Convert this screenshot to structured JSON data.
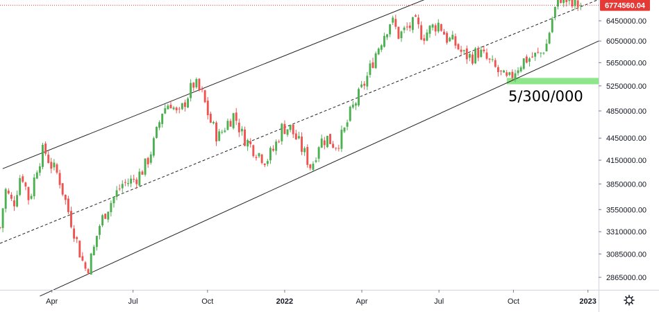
{
  "colors": {
    "up": "#26a69a",
    "up_fill": "#4caf50",
    "down": "#ef5350",
    "channel_line": "#222222",
    "price_line": "#e53935",
    "support_zone": "#8ee68a",
    "axis_border": "#d1d4dc"
  },
  "price_tag": "6774560.04",
  "annotation": "5/300/000",
  "settings_icon": "gear-icon",
  "chart_data": {
    "type": "candlestick",
    "title": "",
    "xlabel": "",
    "ylabel": "",
    "x_ticks": [
      {
        "label": "Apr",
        "t": 0.85,
        "bold": false
      },
      {
        "label": "Jul",
        "t": 3.9,
        "bold": false
      },
      {
        "label": "Oct",
        "t": 6.7,
        "bold": false
      },
      {
        "label": "2022",
        "t": 9.6,
        "bold": true
      },
      {
        "label": "Apr",
        "t": 12.5,
        "bold": false
      },
      {
        "label": "Jul",
        "t": 15.4,
        "bold": false
      },
      {
        "label": "Oct",
        "t": 18.2,
        "bold": false
      },
      {
        "label": "2023",
        "t": 21.0,
        "bold": true
      }
    ],
    "y_ticks": [
      2865000,
      3085000,
      3310000,
      3550000,
      3850000,
      4150000,
      4450000,
      4850000,
      5250000,
      5650000,
      6050000,
      6450000
    ],
    "y_tick_labels": [
      "2865000.00",
      "3085000.00",
      "3310000.00",
      "3550000.00",
      "3850000.00",
      "4150000.00",
      "4450000.00",
      "4850000.00",
      "5250000.00",
      "5650000.00",
      "6050000.00",
      "6450000.00"
    ],
    "xlim": [
      -1.1,
      21.4
    ],
    "ylim_log": [
      2700000,
      7150000
    ],
    "last_price": 6774560.04,
    "support_level": 5300000,
    "support_zone": {
      "t0": 17.95,
      "t1": 22.0,
      "low": 5300000,
      "high": 5360000
    },
    "channel": {
      "upper": [
        [
          -1.0,
          4040000
        ],
        [
          21.4,
          8600000
        ]
      ],
      "middle": [
        [
          -1.1,
          3190000
        ],
        [
          21.4,
          6900000
        ]
      ],
      "lower": [
        [
          0.4,
          2700000
        ],
        [
          21.4,
          6050000
        ]
      ]
    },
    "price_path": [
      [
        -1.1,
        3350000
      ],
      [
        -0.9,
        3780000
      ],
      [
        -0.6,
        3600000
      ],
      [
        -0.3,
        4010000
      ],
      [
        0.0,
        3650000
      ],
      [
        0.3,
        4080000
      ],
      [
        0.55,
        4300000
      ],
      [
        0.8,
        4100000
      ],
      [
        1.1,
        3950000
      ],
      [
        1.4,
        3600000
      ],
      [
        1.7,
        3300000
      ],
      [
        1.95,
        3050000
      ],
      [
        2.15,
        2920000
      ],
      [
        2.4,
        3100000
      ],
      [
        2.6,
        3350000
      ],
      [
        2.9,
        3550000
      ],
      [
        3.2,
        3700000
      ],
      [
        3.5,
        3850000
      ],
      [
        3.8,
        3880000
      ],
      [
        4.1,
        3950000
      ],
      [
        4.4,
        4100000
      ],
      [
        4.7,
        4400000
      ],
      [
        5.0,
        4850000
      ],
      [
        5.3,
        5000000
      ],
      [
        5.6,
        4750000
      ],
      [
        5.9,
        5050000
      ],
      [
        6.2,
        5300000
      ],
      [
        6.5,
        5100000
      ],
      [
        6.8,
        4700000
      ],
      [
        7.1,
        4450000
      ],
      [
        7.4,
        4650000
      ],
      [
        7.7,
        4800000
      ],
      [
        8.0,
        4500000
      ],
      [
        8.3,
        4350000
      ],
      [
        8.6,
        4250000
      ],
      [
        8.9,
        4150000
      ],
      [
        9.2,
        4300000
      ],
      [
        9.5,
        4600000
      ],
      [
        9.8,
        4600000
      ],
      [
        10.1,
        4400000
      ],
      [
        10.4,
        4200000
      ],
      [
        10.6,
        4050000
      ],
      [
        10.9,
        4400000
      ],
      [
        11.2,
        4450000
      ],
      [
        11.5,
        4350000
      ],
      [
        11.8,
        4500000
      ],
      [
        12.1,
        4850000
      ],
      [
        12.4,
        5100000
      ],
      [
        12.7,
        5400000
      ],
      [
        13.0,
        5800000
      ],
      [
        13.3,
        6150000
      ],
      [
        13.6,
        6480000
      ],
      [
        13.9,
        6150000
      ],
      [
        14.2,
        6300000
      ],
      [
        14.5,
        6400000
      ],
      [
        14.8,
        6150000
      ],
      [
        15.1,
        6300000
      ],
      [
        15.4,
        6400000
      ],
      [
        15.7,
        6100000
      ],
      [
        16.0,
        6000000
      ],
      [
        16.3,
        5800000
      ],
      [
        16.6,
        5750000
      ],
      [
        16.9,
        5850000
      ],
      [
        17.2,
        5700000
      ],
      [
        17.5,
        5550000
      ],
      [
        17.8,
        5400000
      ],
      [
        18.0,
        5320000
      ],
      [
        18.3,
        5550000
      ],
      [
        18.6,
        5700000
      ],
      [
        18.9,
        5750000
      ],
      [
        19.2,
        5800000
      ],
      [
        19.45,
        6000000
      ],
      [
        19.7,
        6600000
      ],
      [
        19.95,
        6960000
      ],
      [
        20.15,
        6900000
      ],
      [
        20.35,
        6750000
      ],
      [
        20.55,
        6800000
      ],
      [
        20.75,
        6774560
      ]
    ]
  }
}
